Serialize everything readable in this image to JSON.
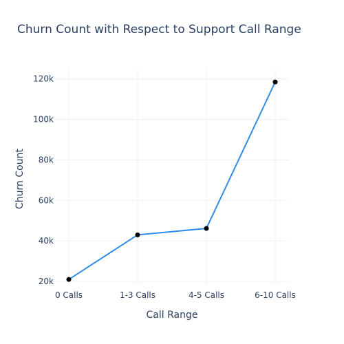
{
  "chart_data": {
    "type": "line",
    "title": "Churn Count with Respect to Support Call Range",
    "xlabel": "Call Range",
    "ylabel": "Churn Count",
    "categories": [
      "0 Calls",
      "1-3 Calls",
      "4-5 Calls",
      "6-10 Calls"
    ],
    "series": [
      {
        "values": [
          21000,
          43000,
          46200,
          118500
        ]
      }
    ],
    "ylim": [
      18000,
      125000
    ],
    "yticks": [
      20000,
      40000,
      60000,
      80000,
      100000,
      120000
    ],
    "ytick_labels": [
      "20k",
      "40k",
      "60k",
      "80k",
      "100k",
      "120k"
    ],
    "grid": true,
    "line_color": "#2e8ce6",
    "marker_color": "#000000"
  }
}
